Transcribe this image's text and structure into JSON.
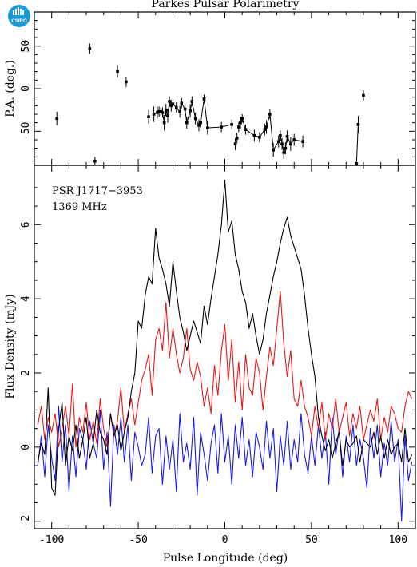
{
  "logo": {
    "text": "CSIRO",
    "color": "#1a9ad6"
  },
  "chart_data": [
    {
      "type": "scatter",
      "title": "Parkes Pulsar Polarimetry",
      "ylabel": "P.A. (deg.)",
      "xlim": [
        -110,
        110
      ],
      "ylim": [
        -90,
        90
      ],
      "xticks": [
        -100,
        -50,
        0,
        50,
        100
      ],
      "yticks": [
        -50,
        0,
        50
      ],
      "series": [
        {
          "color": "#000000",
          "x": [
            -97,
            -78,
            -75,
            -62,
            -57,
            -44,
            -41,
            -39,
            -38,
            -37,
            -36,
            -35,
            -34,
            -33,
            -32,
            -31,
            -30,
            -28,
            -26,
            -25,
            -23,
            -22,
            -20,
            -19,
            -17,
            -15,
            -14,
            -12,
            -10,
            -2,
            4,
            6,
            7,
            8,
            9,
            10,
            12,
            17,
            20,
            23,
            24,
            26,
            28,
            31,
            32,
            33,
            34,
            35,
            36,
            38,
            40,
            45,
            76,
            77,
            80
          ],
          "y": [
            -35,
            47,
            -85,
            20,
            8,
            -33,
            -30,
            -28,
            -27,
            -27,
            -28,
            -40,
            -25,
            -32,
            -15,
            -20,
            -18,
            -22,
            -27,
            -17,
            -24,
            -40,
            -26,
            -15,
            -35,
            -43,
            -40,
            -12,
            -46,
            -45,
            -42,
            -65,
            -58,
            -45,
            -40,
            -35,
            -48,
            -55,
            -57,
            -48,
            -45,
            -30,
            -72,
            -62,
            -55,
            -65,
            -75,
            -70,
            -56,
            -65,
            -60,
            -62,
            -88,
            -42,
            -8
          ],
          "yerr": [
            8,
            6,
            5,
            7,
            6,
            8,
            9,
            7,
            6,
            5,
            6,
            9,
            7,
            8,
            6,
            7,
            6,
            6,
            7,
            6,
            7,
            7,
            8,
            6,
            7,
            7,
            6,
            5,
            8,
            6,
            6,
            7,
            6,
            6,
            7,
            5,
            6,
            7,
            6,
            7,
            8,
            6,
            8,
            7,
            6,
            7,
            8,
            7,
            7,
            8,
            7,
            7,
            3,
            10,
            6
          ],
          "linked_ranges": [
            [
              6,
              30
            ],
            [
              34,
              51
            ],
            [
              52,
              53
            ]
          ]
        }
      ]
    },
    {
      "type": "line",
      "xlabel": "Pulse Longitude (deg)",
      "ylabel": "Flux Density (mJy)",
      "xlim": [
        -110,
        110
      ],
      "ylim": [
        -2.2,
        7.6
      ],
      "xticks": [
        -100,
        -50,
        0,
        50,
        100
      ],
      "yticks": [
        -2,
        0,
        2,
        4,
        6
      ],
      "annotations": [
        "PSR J1717−3953",
        "1369 MHz"
      ],
      "x": [
        -108,
        -106,
        -104,
        -102,
        -100,
        -98,
        -96,
        -94,
        -92,
        -90,
        -88,
        -86,
        -84,
        -82,
        -80,
        -78,
        -76,
        -74,
        -72,
        -70,
        -68,
        -66,
        -64,
        -62,
        -60,
        -58,
        -56,
        -54,
        -52,
        -50,
        -48,
        -46,
        -44,
        -42,
        -40,
        -38,
        -36,
        -34,
        -32,
        -30,
        -28,
        -26,
        -24,
        -22,
        -20,
        -18,
        -16,
        -14,
        -12,
        -10,
        -8,
        -6,
        -4,
        -2,
        0,
        2,
        4,
        6,
        8,
        10,
        12,
        14,
        16,
        18,
        20,
        22,
        24,
        26,
        28,
        30,
        32,
        34,
        36,
        38,
        40,
        42,
        44,
        46,
        48,
        50,
        52,
        54,
        56,
        58,
        60,
        62,
        64,
        66,
        68,
        70,
        72,
        74,
        76,
        78,
        80,
        82,
        84,
        86,
        88,
        90,
        92,
        94,
        96,
        98,
        100,
        102,
        104,
        106,
        108
      ],
      "series": [
        {
          "color": "#000000",
          "values": [
            -0.4,
            0.1,
            -0.2,
            1.6,
            -1.1,
            -1.3,
            0.5,
            1.2,
            -0.5,
            0.3,
            -0.1,
            0.6,
            -0.3,
            0.2,
            0.8,
            -0.3,
            0.1,
            1.0,
            0.4,
            0.2,
            -0.2,
            0.9,
            0.3,
            0.6,
            -0.1,
            0.4,
            0.8,
            1.5,
            2.0,
            3.4,
            3.2,
            4.1,
            4.6,
            4.4,
            5.9,
            5.1,
            4.8,
            4.4,
            3.8,
            5.0,
            4.2,
            3.5,
            3.1,
            2.6,
            3.0,
            3.4,
            3.1,
            2.8,
            3.8,
            3.3,
            4.0,
            4.6,
            5.2,
            6.0,
            7.2,
            5.8,
            6.1,
            5.2,
            4.8,
            4.2,
            3.9,
            3.2,
            3.6,
            3.0,
            2.5,
            2.9,
            3.6,
            4.1,
            4.6,
            5.0,
            5.5,
            5.9,
            6.2,
            5.7,
            5.4,
            5.1,
            4.8,
            4.1,
            3.2,
            2.5,
            1.9,
            0.8,
            0.3,
            -0.1,
            0.2,
            -0.3,
            0.1,
            0.4,
            -0.5,
            0.2,
            0.0,
            0.1,
            0.3,
            -0.4,
            0.2,
            0.1,
            0.0,
            0.4,
            -0.2,
            0.3,
            -0.3,
            0.2,
            -0.2,
            0.0,
            0.1,
            -0.4,
            0.5,
            -0.4,
            -0.2
          ]
        },
        {
          "color": "#e61919",
          "values": [
            0.6,
            1.1,
            0.2,
            0.8,
            0.4,
            0.9,
            0.0,
            0.5,
            1.1,
            0.3,
            1.7,
            0.0,
            0.8,
            0.4,
            1.2,
            0.2,
            0.7,
            0.1,
            1.3,
            0.5,
            0.0,
            0.9,
            0.3,
            0.7,
            1.6,
            0.4,
            0.9,
            1.3,
            0.6,
            1.2,
            1.8,
            2.1,
            2.5,
            1.4,
            2.9,
            3.2,
            2.6,
            3.9,
            2.4,
            3.2,
            2.5,
            2.0,
            2.4,
            3.2,
            2.1,
            1.8,
            2.3,
            1.9,
            1.1,
            1.6,
            0.9,
            2.2,
            1.4,
            2.6,
            3.3,
            1.8,
            2.9,
            1.2,
            2.3,
            1.0,
            2.5,
            1.6,
            1.4,
            2.4,
            2.0,
            1.0,
            1.9,
            2.7,
            2.2,
            3.2,
            4.2,
            2.8,
            1.9,
            2.6,
            1.3,
            1.1,
            1.8,
            1.1,
            0.8,
            0.3,
            1.1,
            0.5,
            1.2,
            0.2,
            0.9,
            0.5,
            1.3,
            0.4,
            0.8,
            1.2,
            0.3,
            0.9,
            0.5,
            1.1,
            0.2,
            0.6,
            1.0,
            0.7,
            1.3,
            0.2,
            0.8,
            0.4,
            1.1,
            0.9,
            0.5,
            0.4,
            1.1,
            1.5,
            1.3
          ]
        },
        {
          "color": "#1a1ae6",
          "values": [
            -0.5,
            0.3,
            -0.8,
            0.6,
            -0.3,
            -0.9,
            1.1,
            -0.4,
            0.6,
            -1.2,
            0.3,
            -0.8,
            0.5,
            0.2,
            -0.6,
            0.7,
            0.1,
            -0.3,
            1.0,
            -0.6,
            0.4,
            -1.6,
            0.6,
            -0.2,
            0.8,
            -0.4,
            0.6,
            -0.9,
            0.4,
            0.0,
            -0.5,
            -0.2,
            0.8,
            -0.7,
            0.3,
            0.5,
            -1.0,
            0.3,
            -0.6,
            0.2,
            -1.2,
            0.9,
            -0.4,
            0.1,
            -0.6,
            0.8,
            -1.3,
            0.4,
            -0.2,
            -0.9,
            0.1,
            0.6,
            -0.7,
            0.9,
            -0.4,
            0.3,
            -1.0,
            0.6,
            -0.3,
            0.8,
            -0.5,
            0.2,
            -0.8,
            0.4,
            0.0,
            -0.6,
            0.7,
            -0.3,
            0.5,
            -1.2,
            0.3,
            -0.5,
            0.7,
            -0.6,
            0.2,
            -0.4,
            0.9,
            -0.2,
            -0.7,
            0.3,
            -0.5,
            0.6,
            -0.3,
            0.4,
            -1.0,
            0.8,
            -0.2,
            0.5,
            -0.8,
            0.3,
            -0.4,
            0.6,
            -0.5,
            0.2,
            -0.3,
            -1.1,
            0.5,
            -0.3,
            0.6,
            -0.8,
            0.1,
            -0.5,
            0.7,
            -0.4,
            0.2,
            -2.0,
            0.3,
            -0.9,
            -0.4
          ]
        }
      ]
    }
  ]
}
